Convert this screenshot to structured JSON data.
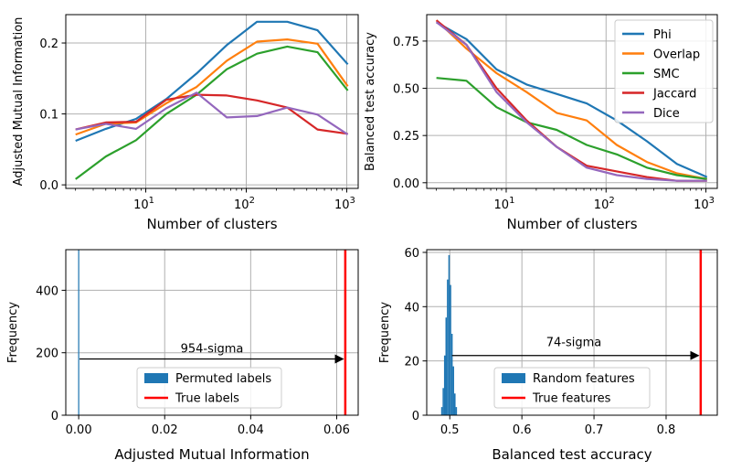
{
  "chart_data": [
    {
      "type": "line",
      "xscale": "log",
      "xlabel": "Number of clusters",
      "ylabel": "Adjusted Mutual Information",
      "xlim": [
        1.6,
        1300
      ],
      "ylim": [
        -0.005,
        0.24
      ],
      "x_ticks": [
        10,
        100,
        1000
      ],
      "x_tick_labels": [
        {
          "base": "10",
          "exp": "1"
        },
        {
          "base": "10",
          "exp": "2"
        },
        {
          "base": "10",
          "exp": "3"
        }
      ],
      "y_ticks": [
        0.0,
        0.1,
        0.2
      ],
      "y_tick_labels": [
        "0.0",
        "0.1",
        "0.2"
      ],
      "x": [
        2,
        4,
        8,
        16,
        32,
        64,
        128,
        256,
        512,
        1024
      ],
      "series": [
        {
          "name": "Phi",
          "color": "#1f77b4",
          "values": [
            0.062,
            0.079,
            0.093,
            0.121,
            0.157,
            0.197,
            0.23,
            0.23,
            0.218,
            0.17
          ]
        },
        {
          "name": "Overlap",
          "color": "#ff7f0e",
          "values": [
            0.071,
            0.086,
            0.088,
            0.115,
            0.138,
            0.175,
            0.202,
            0.205,
            0.199,
            0.139
          ]
        },
        {
          "name": "SMC",
          "color": "#2ca02c",
          "values": [
            0.008,
            0.04,
            0.063,
            0.1,
            0.127,
            0.163,
            0.185,
            0.195,
            0.187,
            0.133
          ]
        },
        {
          "name": "Jaccard",
          "color": "#d62728",
          "values": [
            0.078,
            0.088,
            0.089,
            0.12,
            0.127,
            0.126,
            0.119,
            0.109,
            0.078,
            0.072
          ]
        },
        {
          "name": "Dice",
          "color": "#9467bd",
          "values": [
            0.078,
            0.086,
            0.079,
            0.108,
            0.13,
            0.095,
            0.097,
            0.109,
            0.099,
            0.071
          ]
        }
      ]
    },
    {
      "type": "line",
      "xscale": "log",
      "xlabel": "Number of clusters",
      "ylabel": "Balanced test accuracy",
      "xlim": [
        1.6,
        1300
      ],
      "ylim": [
        -0.03,
        0.89
      ],
      "x_ticks": [
        10,
        100,
        1000
      ],
      "x_tick_labels": [
        {
          "base": "10",
          "exp": "1"
        },
        {
          "base": "10",
          "exp": "2"
        },
        {
          "base": "10",
          "exp": "3"
        }
      ],
      "y_ticks": [
        0.0,
        0.25,
        0.5,
        0.75
      ],
      "y_tick_labels": [
        "0.00",
        "0.25",
        "0.50",
        "0.75"
      ],
      "legend": "top-right",
      "x": [
        2,
        4,
        8,
        16,
        32,
        64,
        128,
        256,
        512,
        1024
      ],
      "series": [
        {
          "name": "Phi",
          "color": "#1f77b4",
          "values": [
            0.85,
            0.76,
            0.6,
            0.52,
            0.47,
            0.42,
            0.33,
            0.22,
            0.1,
            0.03
          ]
        },
        {
          "name": "Overlap",
          "color": "#ff7f0e",
          "values": [
            0.86,
            0.71,
            0.58,
            0.48,
            0.37,
            0.33,
            0.2,
            0.11,
            0.05,
            0.02
          ]
        },
        {
          "name": "SMC",
          "color": "#2ca02c",
          "values": [
            0.555,
            0.54,
            0.4,
            0.32,
            0.28,
            0.2,
            0.15,
            0.08,
            0.04,
            0.02
          ]
        },
        {
          "name": "Jaccard",
          "color": "#d62728",
          "values": [
            0.86,
            0.73,
            0.5,
            0.33,
            0.19,
            0.09,
            0.06,
            0.03,
            0.01,
            0.01
          ]
        },
        {
          "name": "Dice",
          "color": "#9467bd",
          "values": [
            0.85,
            0.73,
            0.48,
            0.32,
            0.19,
            0.08,
            0.04,
            0.02,
            0.01,
            0.01
          ]
        }
      ]
    },
    {
      "type": "histogram",
      "xlabel": "Adjusted Mutual Information",
      "ylabel": "Frequency",
      "xlim": [
        -0.003,
        0.065
      ],
      "ylim": [
        0,
        530
      ],
      "x_ticks": [
        0.0,
        0.02,
        0.04,
        0.06
      ],
      "x_tick_labels": [
        "0.00",
        "0.02",
        "0.04",
        "0.06"
      ],
      "y_ticks": [
        0,
        200,
        400
      ],
      "y_tick_labels": [
        "0",
        "200",
        "400"
      ],
      "hist": {
        "name": "Permuted labels",
        "color": "#1f77b4",
        "bin_edges": [
          -0.0001,
          0.0001
        ],
        "counts": [
          530
        ]
      },
      "vline": {
        "name": "True labels",
        "color": "#ff0000",
        "x": 0.062
      },
      "arrow": {
        "from": [
          0.0002,
          180
        ],
        "to": [
          0.0615,
          180
        ]
      },
      "annotation": {
        "text": "954-sigma",
        "x": 0.031,
        "y": 200
      },
      "legend": "lower-center"
    },
    {
      "type": "histogram",
      "xlabel": "Balanced test accuracy",
      "ylabel": "Frequency",
      "xlim": [
        0.468,
        0.871
      ],
      "ylim": [
        0,
        61
      ],
      "x_ticks": [
        0.5,
        0.6,
        0.7,
        0.8
      ],
      "x_tick_labels": [
        "0.5",
        "0.6",
        "0.7",
        "0.8"
      ],
      "y_ticks": [
        0,
        20,
        40,
        60
      ],
      "y_tick_labels": [
        "0",
        "20",
        "40",
        "60"
      ],
      "hist": {
        "name": "Random features",
        "color": "#1f77b4",
        "bin_edges": [
          0.488,
          0.49,
          0.492,
          0.494,
          0.496,
          0.498,
          0.5,
          0.502,
          0.504,
          0.506,
          0.508,
          0.51
        ],
        "counts": [
          3,
          10,
          22,
          36,
          50,
          59,
          48,
          30,
          18,
          8,
          3
        ]
      },
      "vline": {
        "name": "True features",
        "color": "#ff0000",
        "x": 0.848
      },
      "arrow": {
        "from": [
          0.503,
          22
        ],
        "to": [
          0.845,
          22
        ]
      },
      "annotation": {
        "text": "74-sigma",
        "x": 0.672,
        "y": 25.5
      },
      "legend": "lower-center"
    }
  ]
}
